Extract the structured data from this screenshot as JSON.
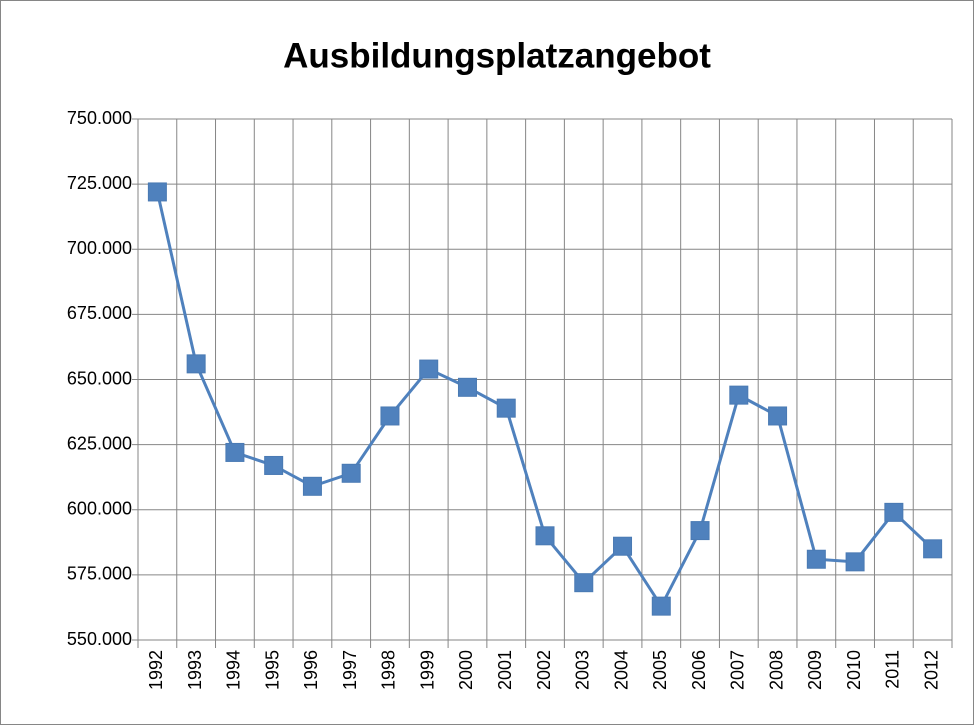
{
  "chart_data": {
    "type": "line",
    "title": "Ausbildungsplatzangebot",
    "categories": [
      "1992",
      "1993",
      "1994",
      "1995",
      "1996",
      "1997",
      "1998",
      "1999",
      "2000",
      "2001",
      "2002",
      "2003",
      "2004",
      "2005",
      "2006",
      "2007",
      "2008",
      "2009",
      "2010",
      "2011",
      "2012"
    ],
    "values": [
      722000,
      656000,
      622000,
      617000,
      609000,
      614000,
      636000,
      654000,
      647000,
      639000,
      590000,
      572000,
      586000,
      563000,
      592000,
      644000,
      636000,
      581000,
      580000,
      599000,
      585000
    ],
    "color": "#4f81bd",
    "ylim": [
      550000,
      750000
    ],
    "yticks": [
      {
        "value": 550000,
        "label": "550.000"
      },
      {
        "value": 575000,
        "label": "575.000"
      },
      {
        "value": 600000,
        "label": "600.000"
      },
      {
        "value": 625000,
        "label": "625.000"
      },
      {
        "value": 650000,
        "label": "650.000"
      },
      {
        "value": 675000,
        "label": "675.000"
      },
      {
        "value": 700000,
        "label": "700.000"
      },
      {
        "value": 725000,
        "label": "725.000"
      },
      {
        "value": 750000,
        "label": "750.000"
      }
    ],
    "grid": true
  }
}
